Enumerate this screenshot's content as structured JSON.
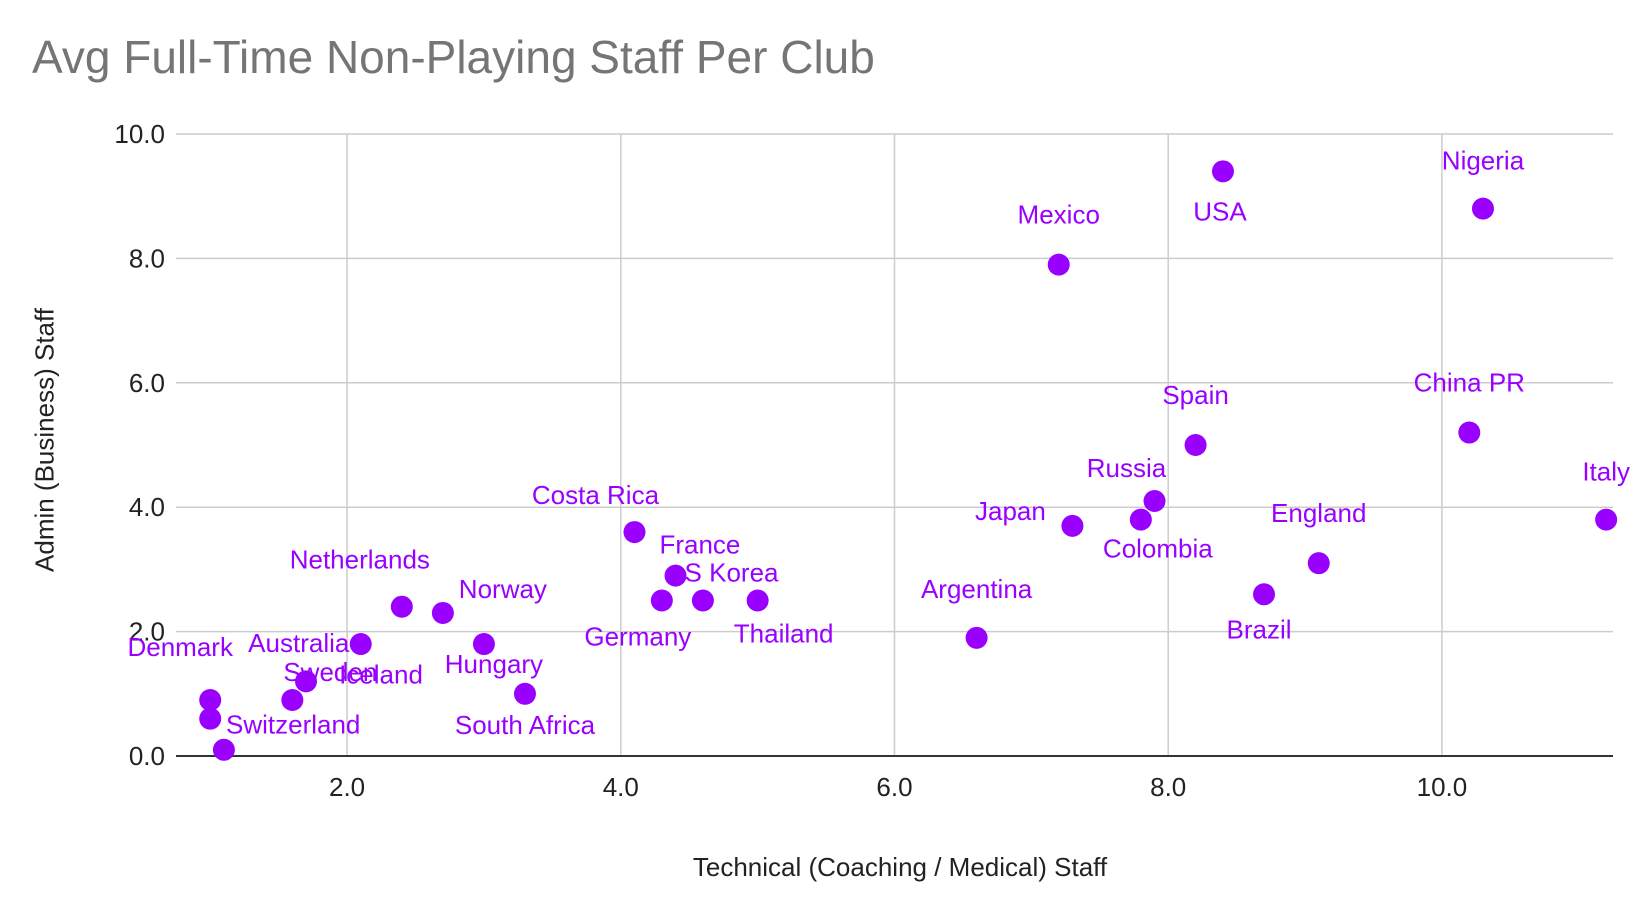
{
  "chart_data": {
    "type": "scatter",
    "title": "Avg Full-Time Non-Playing Staff Per Club",
    "xlabel": "Technical (Coaching / Medical) Staff",
    "ylabel": "Admin (Business) Staff",
    "xlim": [
      0.75,
      11.25
    ],
    "ylim": [
      0,
      10
    ],
    "x_ticks": [
      "2.0",
      "4.0",
      "6.0",
      "8.0",
      "10.0"
    ],
    "y_ticks": [
      "0.0",
      "2.0",
      "4.0",
      "6.0",
      "8.0",
      "10.0"
    ],
    "grid": true,
    "point_color": "#9900ff",
    "points": [
      {
        "label": "Nigeria",
        "x": 10.3,
        "y": 8.8
      },
      {
        "label": "USA",
        "x": 8.4,
        "y": 9.4
      },
      {
        "label": "Mexico",
        "x": 7.2,
        "y": 7.9
      },
      {
        "label": "China PR",
        "x": 10.2,
        "y": 5.2
      },
      {
        "label": "Spain",
        "x": 8.2,
        "y": 5.0
      },
      {
        "label": "Russia",
        "x": 7.9,
        "y": 4.1
      },
      {
        "label": "Italy",
        "x": 11.2,
        "y": 3.8
      },
      {
        "label": "Colombia",
        "x": 7.8,
        "y": 3.8
      },
      {
        "label": "Japan",
        "x": 7.3,
        "y": 3.7
      },
      {
        "label": "England",
        "x": 9.1,
        "y": 3.1
      },
      {
        "label": "Brazil",
        "x": 8.7,
        "y": 2.6
      },
      {
        "label": "Argentina",
        "x": 6.6,
        "y": 1.9
      },
      {
        "label": "Costa Rica",
        "x": 4.1,
        "y": 3.6
      },
      {
        "label": "France",
        "x": 4.6,
        "y": 2.5
      },
      {
        "label": "S Korea",
        "x": 4.4,
        "y": 2.9
      },
      {
        "label": "Germany",
        "x": 4.3,
        "y": 2.5
      },
      {
        "label": "Thailand",
        "x": 5.0,
        "y": 2.5
      },
      {
        "label": "Netherlands",
        "x": 2.4,
        "y": 2.4
      },
      {
        "label": "Norway",
        "x": 2.7,
        "y": 2.3
      },
      {
        "label": "Australia",
        "x": 2.1,
        "y": 1.8
      },
      {
        "label": "Hungary",
        "x": 3.0,
        "y": 1.8
      },
      {
        "label": "Iceland",
        "x": 1.7,
        "y": 1.2
      },
      {
        "label": "South Africa",
        "x": 3.3,
        "y": 1.0
      },
      {
        "label": "Denmark",
        "x": 1.0,
        "y": 0.9
      },
      {
        "label": "Sweden",
        "x": 1.6,
        "y": 0.9
      },
      {
        "label": "Switzerland",
        "x": 1.0,
        "y": 0.6
      },
      {
        "label": "",
        "x": 1.1,
        "y": 0.1
      }
    ]
  }
}
